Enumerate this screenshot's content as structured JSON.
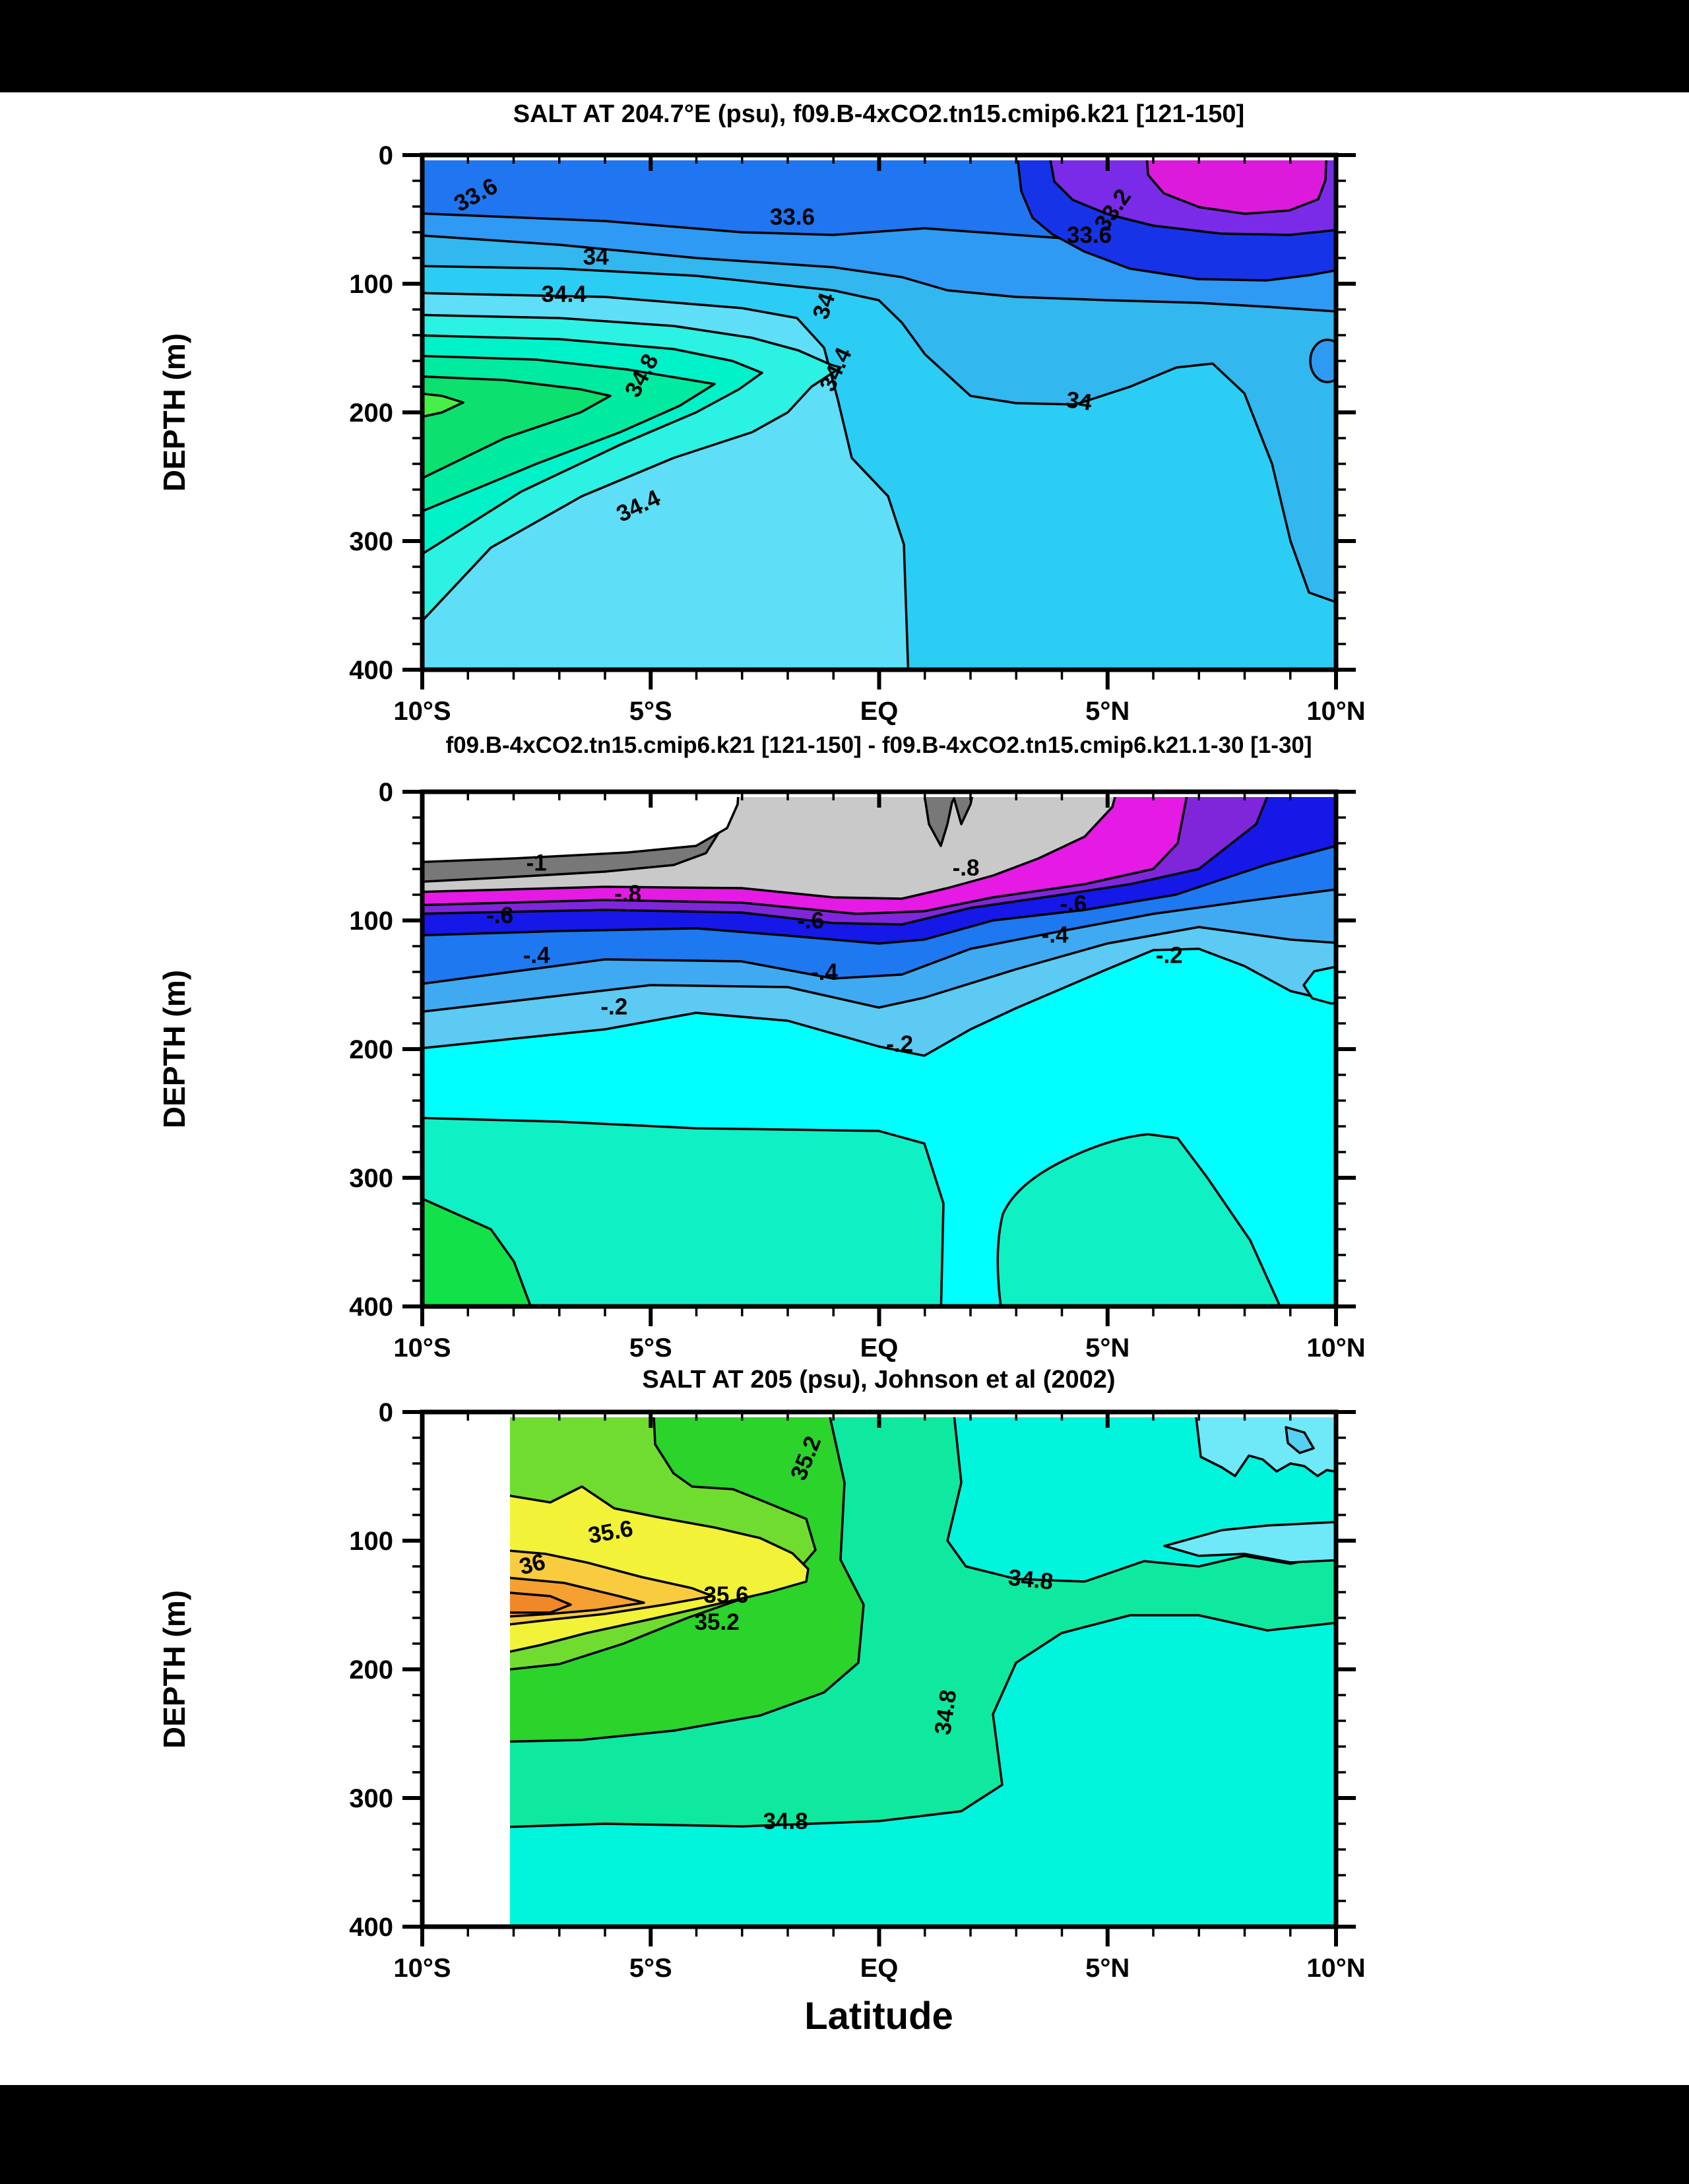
{
  "page": {
    "background": "#000000",
    "canvas": "#ffffff"
  },
  "figure": {
    "xlabel": "Latitude",
    "ylabel": "DEPTH (m)"
  },
  "chart_data": [
    {
      "type": "heatmap",
      "subtype": "filled-contour-section",
      "title": "SALT AT 204.7°E (psu), f09.B-4xCO2.tn15.cmip6.k21 [121-150]",
      "ylabel": "DEPTH (m)",
      "units": "psu",
      "xlim": [
        -10,
        10
      ],
      "ylim": [
        0,
        400
      ],
      "x_ticks": [
        {
          "v": -10,
          "l": "10°S"
        },
        {
          "v": -5,
          "l": "5°S"
        },
        {
          "v": 0,
          "l": "EQ"
        },
        {
          "v": 5,
          "l": "5°N"
        },
        {
          "v": 10,
          "l": "10°N"
        }
      ],
      "x_minor_step": 1,
      "y_ticks": [
        {
          "v": 0,
          "l": "0"
        },
        {
          "v": 100,
          "l": "100"
        },
        {
          "v": 200,
          "l": "200"
        },
        {
          "v": 300,
          "l": "300"
        },
        {
          "v": 400,
          "l": "400"
        }
      ],
      "y_minor_step": 20,
      "contour_interval": 0.2,
      "labeled_levels": [
        33.2,
        33.6,
        34,
        34.4,
        34.8
      ],
      "bands": [
        {
          "range": "<33.0",
          "color": "#dc1adc"
        },
        {
          "range": "33.0-33.2",
          "color": "#7a2be8"
        },
        {
          "range": "33.2-33.4",
          "color": "#1733e8"
        },
        {
          "range": "33.4-33.6",
          "color": "#1f76f0"
        },
        {
          "range": "33.6-33.8",
          "color": "#2e9af3"
        },
        {
          "range": "33.8-34.0",
          "color": "#32b7ee"
        },
        {
          "range": "34.0-34.2",
          "color": "#2bcdf4"
        },
        {
          "range": "34.2-34.4",
          "color": "#5fdef8"
        },
        {
          "range": "34.4-34.6",
          "color": "#2bf2e2"
        },
        {
          "range": "34.6-34.8",
          "color": "#00f2c8"
        },
        {
          "range": "34.8-35.0",
          "color": "#00eba0"
        },
        {
          "range": "35.0-35.2",
          "color": "#0ce06e"
        },
        {
          "range": ">35.2",
          "color": "#46f046"
        }
      ],
      "contour_labels": [
        {
          "t": "33.6",
          "lat": -8.75,
          "d": 30,
          "r": -28
        },
        {
          "t": "33.6",
          "lat": -1.9,
          "d": 48,
          "r": 0
        },
        {
          "t": "33.6",
          "lat": 4.6,
          "d": 62,
          "r": 0
        },
        {
          "t": "33.2",
          "lat": 5.25,
          "d": 40,
          "r": -55
        },
        {
          "t": "34",
          "lat": -6.2,
          "d": 79,
          "r": 0
        },
        {
          "t": "34",
          "lat": -1.05,
          "d": 113,
          "r": -72
        },
        {
          "t": "34",
          "lat": 4.35,
          "d": 191,
          "r": 8
        },
        {
          "t": "34.4",
          "lat": -6.9,
          "d": 108,
          "r": 0
        },
        {
          "t": "34.4",
          "lat": -0.8,
          "d": 163,
          "r": -65
        },
        {
          "t": "34.4",
          "lat": -5.2,
          "d": 272,
          "r": -25
        },
        {
          "t": "34.8",
          "lat": -5.05,
          "d": 168,
          "r": -62
        }
      ]
    },
    {
      "type": "heatmap",
      "subtype": "filled-contour-section-difference",
      "title": "f09.B-4xCO2.tn15.cmip6.k21 [121-150] - f09.B-4xCO2.tn15.cmip6.k21.1-30 [1-30]",
      "ylabel": "DEPTH (m)",
      "units": "psu",
      "xlim": [
        -10,
        10
      ],
      "ylim": [
        0,
        400
      ],
      "x_ticks": [
        {
          "v": -10,
          "l": "10°S"
        },
        {
          "v": -5,
          "l": "5°S"
        },
        {
          "v": 0,
          "l": "EQ"
        },
        {
          "v": 5,
          "l": "5°N"
        },
        {
          "v": 10,
          "l": "10°N"
        }
      ],
      "x_minor_step": 1,
      "y_ticks": [
        {
          "v": 0,
          "l": "0"
        },
        {
          "v": 100,
          "l": "100"
        },
        {
          "v": 200,
          "l": "200"
        },
        {
          "v": 300,
          "l": "300"
        },
        {
          "v": 400,
          "l": "400"
        }
      ],
      "y_minor_step": 20,
      "contour_interval": 0.1,
      "labeled_levels": [
        -1,
        -0.8,
        -0.6,
        -0.4,
        -0.2
      ],
      "bands": [
        {
          "range": "<-1.0",
          "color": "#ffffff"
        },
        {
          "range": "-1.0--0.9",
          "color": "#787878"
        },
        {
          "range": "-0.9--0.8",
          "color": "#c9c9c9"
        },
        {
          "range": "-0.8--0.7",
          "color": "#e51ae5"
        },
        {
          "range": "-0.7--0.6",
          "color": "#7f26db"
        },
        {
          "range": "-0.6--0.5",
          "color": "#1618e8"
        },
        {
          "range": "-0.5--0.4",
          "color": "#1e78f0"
        },
        {
          "range": "-0.4--0.3",
          "color": "#3faaf2"
        },
        {
          "range": "-0.3--0.2",
          "color": "#5ccaf2"
        },
        {
          "range": "-0.2--0.1",
          "color": "#00ffff"
        },
        {
          "range": "-0.1-0.0",
          "color": "#0ff0c4"
        },
        {
          "range": ">0.0",
          "color": "#12e14a"
        }
      ],
      "contour_labels": [
        {
          "t": "-1",
          "lat": -7.5,
          "d": 55,
          "r": 0
        },
        {
          "t": "-.8",
          "lat": -5.5,
          "d": 79,
          "r": 0
        },
        {
          "t": "-.8",
          "lat": 1.9,
          "d": 59,
          "r": 0
        },
        {
          "t": "-.6",
          "lat": -8.3,
          "d": 96,
          "r": 0
        },
        {
          "t": "-.6",
          "lat": -1.5,
          "d": 100,
          "r": 0
        },
        {
          "t": "-.6",
          "lat": 4.25,
          "d": 87,
          "r": 0
        },
        {
          "t": "-.4",
          "lat": -7.5,
          "d": 127,
          "r": 0
        },
        {
          "t": "-.4",
          "lat": -1.2,
          "d": 140,
          "r": 0
        },
        {
          "t": "-.4",
          "lat": 3.85,
          "d": 111,
          "r": 0
        },
        {
          "t": "-.2",
          "lat": -5.8,
          "d": 167,
          "r": 0
        },
        {
          "t": "-.2",
          "lat": 0.45,
          "d": 196,
          "r": 0
        },
        {
          "t": "-.2",
          "lat": 6.35,
          "d": 127,
          "r": 0
        }
      ]
    },
    {
      "type": "heatmap",
      "subtype": "filled-contour-section",
      "title": "SALT AT 205 (psu), Johnson et al (2002)",
      "ylabel": "DEPTH (m)",
      "xlabel": "Latitude",
      "units": "psu",
      "xlim": [
        -10,
        10
      ],
      "ylim": [
        0,
        400
      ],
      "data_start_lat": -8.07,
      "x_ticks": [
        {
          "v": -10,
          "l": "10°S"
        },
        {
          "v": -5,
          "l": "5°S"
        },
        {
          "v": 0,
          "l": "EQ"
        },
        {
          "v": 5,
          "l": "5°N"
        },
        {
          "v": 10,
          "l": "10°N"
        }
      ],
      "x_minor_step": 1,
      "y_ticks": [
        {
          "v": 0,
          "l": "0"
        },
        {
          "v": 100,
          "l": "100"
        },
        {
          "v": 200,
          "l": "200"
        },
        {
          "v": 300,
          "l": "300"
        },
        {
          "v": 400,
          "l": "400"
        }
      ],
      "y_minor_step": 20,
      "contour_interval": 0.2,
      "labeled_levels": [
        34.8,
        35.2,
        35.6,
        36
      ],
      "bands": [
        {
          "range": "<34.4",
          "color": "#6fe8f8"
        },
        {
          "range": "<34.2",
          "color": "#55cff2"
        },
        {
          "range": "34.4-34.8",
          "color": "#00f5dc"
        },
        {
          "range": "34.8-35.2",
          "color": "#0fe9a0"
        },
        {
          "range": "35.2-35.4",
          "color": "#2bd32b"
        },
        {
          "range": "35.4-35.6",
          "color": "#70dc30"
        },
        {
          "range": "35.6-36.0",
          "color": "#f2f238"
        },
        {
          "range": "36.0-36.2",
          "color": "#f8cc3e"
        },
        {
          "range": "36.2-36.4",
          "color": "#f5a030"
        },
        {
          "range": ">36.4",
          "color": "#f08828"
        }
      ],
      "contour_labels": [
        {
          "t": "35.2",
          "lat": -1.45,
          "d": 32,
          "r": -68
        },
        {
          "t": "35.6",
          "lat": -5.85,
          "d": 93,
          "r": -10
        },
        {
          "t": "36",
          "lat": -7.55,
          "d": 118,
          "r": -14
        },
        {
          "t": "35.6",
          "lat": -3.35,
          "d": 142,
          "r": 0
        },
        {
          "t": "35.2",
          "lat": -3.55,
          "d": 163,
          "r": 0
        },
        {
          "t": "34.8",
          "lat": 3.3,
          "d": 130,
          "r": 6
        },
        {
          "t": "34.8",
          "lat": 1.62,
          "d": 228,
          "r": -82
        },
        {
          "t": "34.8",
          "lat": -2.05,
          "d": 318,
          "r": 0
        }
      ]
    }
  ]
}
